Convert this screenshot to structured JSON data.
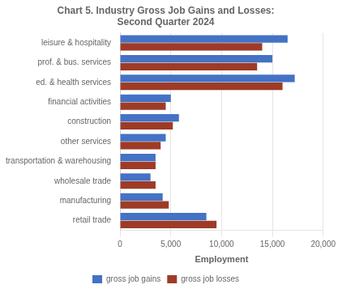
{
  "chart_data": {
    "type": "bar",
    "orientation": "horizontal",
    "title": "Chart 5. Industry Gross Job Gains and Losses:\nSecond Quarter 2024",
    "xlabel": "Employment",
    "categories": [
      "retail trade",
      "manufacturing",
      "wholesale trade",
      "transportation & warehousing",
      "other services",
      "construction",
      "financial activities",
      "ed. & health services",
      "prof. & bus. services",
      "leisure & hospitality"
    ],
    "series": [
      {
        "name": "gross job gains",
        "color": "#4472C4",
        "values": [
          8500,
          4200,
          3000,
          3500,
          4500,
          5800,
          5000,
          17200,
          15000,
          16500
        ]
      },
      {
        "name": "gross job losses",
        "color": "#9E3B26",
        "values": [
          9500,
          4800,
          3500,
          3500,
          4000,
          5200,
          4500,
          16000,
          13500,
          14000
        ]
      }
    ],
    "xlim": [
      0,
      20000
    ],
    "xticks": [
      0,
      {
        "value": 5000,
        "label": "5,000"
      },
      {
        "value": 10000,
        "label": "10,000"
      },
      {
        "value": 15000,
        "label": "15,000"
      },
      {
        "value": 20000,
        "label": "20,000"
      }
    ],
    "grid": true,
    "legend": "bottom"
  }
}
